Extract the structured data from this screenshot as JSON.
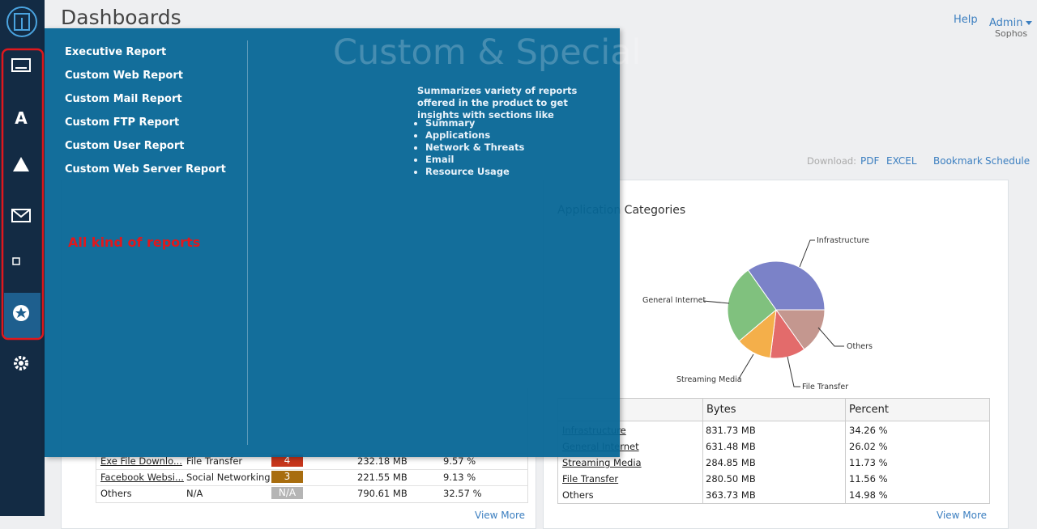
{
  "header": {
    "title": "Dashboards",
    "help": "Help",
    "user": "Admin",
    "org": "Sophos"
  },
  "toolbar": {
    "download": "Download:",
    "links": [
      "PDF",
      "EXCEL",
      "Bookmark",
      "Schedule"
    ]
  },
  "menu": {
    "items": [
      "Executive Report",
      "Custom Web Report",
      "Custom Mail Report",
      "Custom FTP Report",
      "Custom User Report",
      "Custom Web Server Report"
    ],
    "annotation": "All kind of reports",
    "heading": "Custom & Special",
    "description": "Summarizes variety of reports offered in the product to get insights with sections like",
    "bullets": [
      "Summary",
      "Applications",
      "Network & Threats",
      "Email",
      "Resource Usage"
    ]
  },
  "left_table": {
    "rows": [
      [
        "Exe File Downlo...",
        "File Transfer",
        "4",
        "232.18 MB",
        "9.57 %"
      ],
      [
        "Facebook Websi...",
        "Social Networking",
        "3",
        "221.55 MB",
        "9.13 %"
      ],
      [
        "Others",
        "N/A",
        "N/A",
        "790.61 MB",
        "32.57 %"
      ]
    ],
    "view_more": "View More"
  },
  "chart_data": {
    "type": "pie",
    "title": "Application Categories",
    "categories": [
      "Infrastructure",
      "General Internet",
      "Streaming Media",
      "File Transfer",
      "Others"
    ],
    "values": [
      34.26,
      26.02,
      11.73,
      11.56,
      14.98
    ],
    "colors": [
      "#7b82c8",
      "#80c17e",
      "#f4af4a",
      "#e36b6b",
      "#c4978f"
    ]
  },
  "right_table": {
    "headers": [
      "Bytes",
      "Percent"
    ],
    "rows": [
      [
        "Infrastructure",
        "831.73 MB",
        "34.26 %"
      ],
      [
        "General Internet",
        "631.48 MB",
        "26.02 %"
      ],
      [
        "Streaming Media",
        "284.85 MB",
        "11.73 %"
      ],
      [
        "File Transfer",
        "280.50 MB",
        "11.56 %"
      ],
      [
        "Others",
        "363.73 MB",
        "14.98 %"
      ]
    ],
    "view_more": "View More"
  }
}
